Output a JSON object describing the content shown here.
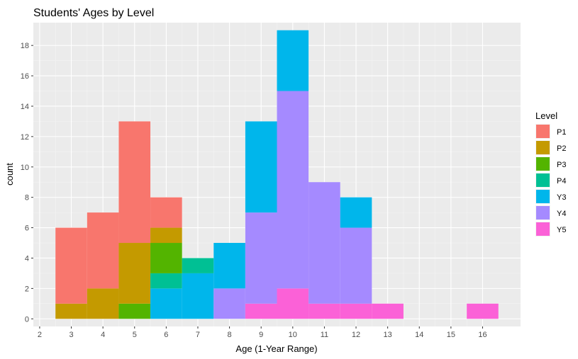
{
  "chart_data": {
    "type": "bar",
    "stacked": true,
    "title": "Students' Ages by Level",
    "xlabel": "Age (1-Year Range)",
    "ylabel": "count",
    "xlim": [
      1.8,
      17.2
    ],
    "ylim": [
      -0.5,
      19.5
    ],
    "x_ticks": [
      "2",
      "3",
      "4",
      "5",
      "6",
      "7",
      "8",
      "9",
      "10",
      "11",
      "12",
      "13",
      "14",
      "15",
      "16"
    ],
    "y_ticks": [
      "0",
      "2",
      "4",
      "6",
      "8",
      "10",
      "12",
      "14",
      "16",
      "18"
    ],
    "grid": true,
    "legend_position": "right",
    "legend_title": "Level",
    "x": [
      3,
      4,
      5,
      6,
      7,
      8,
      9,
      10,
      11,
      12,
      13,
      16
    ],
    "series": [
      {
        "name": "P1",
        "color": "#F8766D",
        "values": [
          5,
          5,
          8,
          2,
          0,
          0,
          0,
          0,
          0,
          0,
          0,
          0
        ]
      },
      {
        "name": "P2",
        "color": "#C49A00",
        "values": [
          1,
          2,
          4,
          1,
          0,
          0,
          0,
          0,
          0,
          0,
          0,
          0
        ]
      },
      {
        "name": "P3",
        "color": "#53B400",
        "values": [
          0,
          0,
          1,
          2,
          0,
          0,
          0,
          0,
          0,
          0,
          0,
          0
        ]
      },
      {
        "name": "P4",
        "color": "#00C094",
        "values": [
          0,
          0,
          0,
          1,
          1,
          0,
          0,
          0,
          0,
          0,
          0,
          0
        ]
      },
      {
        "name": "Y3",
        "color": "#00B6EB",
        "values": [
          0,
          0,
          0,
          2,
          3,
          3,
          6,
          4,
          0,
          2,
          0,
          0
        ]
      },
      {
        "name": "Y4",
        "color": "#A58AFF",
        "values": [
          0,
          0,
          0,
          0,
          0,
          2,
          6,
          13,
          8,
          5,
          0,
          0
        ]
      },
      {
        "name": "Y5",
        "color": "#FB61D7",
        "values": [
          0,
          0,
          0,
          0,
          0,
          0,
          1,
          2,
          1,
          1,
          1,
          1
        ]
      }
    ]
  }
}
